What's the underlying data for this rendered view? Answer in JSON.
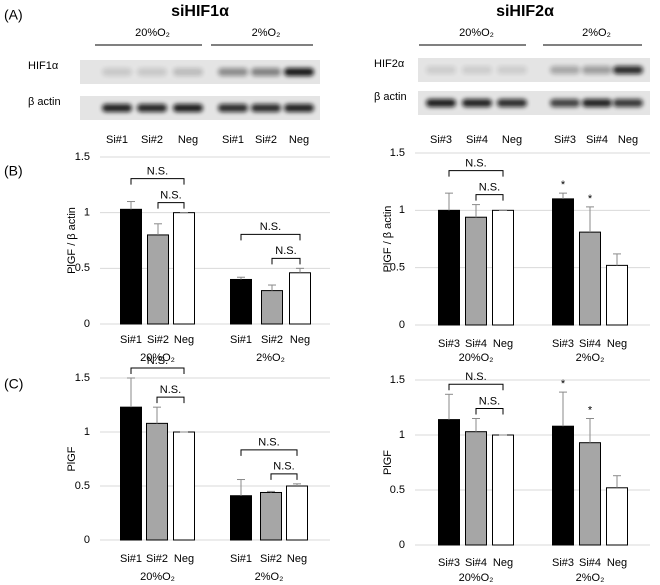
{
  "panels": [
    "(A)",
    "(B)",
    "(C)"
  ],
  "blots": [
    {
      "title": "siHIF1α",
      "conditions": [
        "20%O₂",
        "2%O₂"
      ],
      "rows": [
        "HIF1α",
        "β actin"
      ],
      "lanes": [
        "Si#1",
        "Si#2",
        "Neg",
        "Si#1",
        "Si#2",
        "Neg"
      ]
    },
    {
      "title": "siHIF2α",
      "conditions": [
        "20%O₂",
        "2%O₂"
      ],
      "rows": [
        "HIF2α",
        "β actin"
      ],
      "lanes": [
        "Si#3",
        "Si#4",
        "Neg",
        "Si#3",
        "Si#4",
        "Neg"
      ]
    }
  ],
  "chart_data": [
    {
      "type": "bar",
      "ylabel": "PlGF / β actin",
      "categories": [
        "Si#1",
        "Si#2",
        "Neg",
        "Si#1",
        "Si#2",
        "Neg"
      ],
      "groups": [
        "20%O₂",
        "2%O₂"
      ],
      "values": [
        1.03,
        0.8,
        1.0,
        0.4,
        0.3,
        0.46
      ],
      "errors": [
        0.07,
        0.1,
        0,
        0.02,
        0.05,
        0.04
      ],
      "colors": [
        "#000000",
        "#a6a6a6",
        "#ffffff",
        "#000000",
        "#a6a6a6",
        "#ffffff"
      ],
      "ylim": [
        0,
        1.5
      ],
      "yticks": [
        0,
        0.5,
        1,
        1.5
      ],
      "grid": true,
      "annotations": [
        {
          "text": "N.S.",
          "span": [
            0,
            2
          ]
        },
        {
          "text": "N.S.",
          "span": [
            1,
            2
          ]
        },
        {
          "text": "N.S.",
          "span": [
            3,
            5
          ]
        },
        {
          "text": "N.S.",
          "span": [
            4,
            5
          ]
        }
      ]
    },
    {
      "type": "bar",
      "ylabel": "PlGF / β actin",
      "categories": [
        "Si#3",
        "Si#4",
        "Neg",
        "Si#3",
        "Si#4",
        "Neg"
      ],
      "groups": [
        "20%O₂",
        "2%O₂"
      ],
      "values": [
        1.0,
        0.94,
        1.0,
        1.1,
        0.81,
        0.52
      ],
      "errors": [
        0.15,
        0.11,
        0,
        0.05,
        0.22,
        0.1
      ],
      "colors": [
        "#000000",
        "#a6a6a6",
        "#ffffff",
        "#000000",
        "#a6a6a6",
        "#ffffff"
      ],
      "ylim": [
        0,
        1.5
      ],
      "yticks": [
        0,
        0.5,
        1,
        1.5
      ],
      "grid": true,
      "annotations": [
        {
          "text": "N.S.",
          "span": [
            0,
            2
          ]
        },
        {
          "text": "N.S.",
          "span": [
            1,
            2
          ]
        },
        {
          "text": "*",
          "span": [
            3,
            3
          ]
        },
        {
          "text": "*",
          "span": [
            4,
            4
          ]
        }
      ]
    },
    {
      "type": "bar",
      "ylabel": "PlGF",
      "categories": [
        "Si#1",
        "Si#2",
        "Neg",
        "Si#1",
        "Si#2",
        "Neg"
      ],
      "groups": [
        "20%O₂",
        "2%O₂"
      ],
      "values": [
        1.23,
        1.08,
        1.0,
        0.41,
        0.44,
        0.5
      ],
      "errors": [
        0.27,
        0.15,
        0,
        0.15,
        0.01,
        0.02
      ],
      "colors": [
        "#000000",
        "#a6a6a6",
        "#ffffff",
        "#000000",
        "#a6a6a6",
        "#ffffff"
      ],
      "ylim": [
        0,
        1.5
      ],
      "yticks": [
        0,
        0.5,
        1,
        1.5
      ],
      "grid": true,
      "annotations": [
        {
          "text": "N.S.",
          "span": [
            0,
            2
          ]
        },
        {
          "text": "N.S.",
          "span": [
            1,
            2
          ]
        },
        {
          "text": "N.S.",
          "span": [
            3,
            5
          ]
        },
        {
          "text": "N.S.",
          "span": [
            4,
            5
          ]
        }
      ]
    },
    {
      "type": "bar",
      "ylabel": "PlGF",
      "categories": [
        "Si#3",
        "Si#4",
        "Neg",
        "Si#3",
        "Si#4",
        "Neg"
      ],
      "groups": [
        "20%O₂",
        "2%O₂"
      ],
      "values": [
        1.14,
        1.03,
        1.0,
        1.08,
        0.93,
        0.52
      ],
      "errors": [
        0.23,
        0.12,
        0,
        0.31,
        0.22,
        0.11
      ],
      "colors": [
        "#000000",
        "#a6a6a6",
        "#ffffff",
        "#000000",
        "#a6a6a6",
        "#ffffff"
      ],
      "ylim": [
        0,
        1.5
      ],
      "yticks": [
        0,
        0.5,
        1,
        1.5
      ],
      "grid": true,
      "annotations": [
        {
          "text": "N.S.",
          "span": [
            0,
            2
          ]
        },
        {
          "text": "N.S.",
          "span": [
            1,
            2
          ]
        },
        {
          "text": "*",
          "span": [
            3,
            3
          ]
        },
        {
          "text": "*",
          "span": [
            4,
            4
          ]
        }
      ]
    }
  ]
}
